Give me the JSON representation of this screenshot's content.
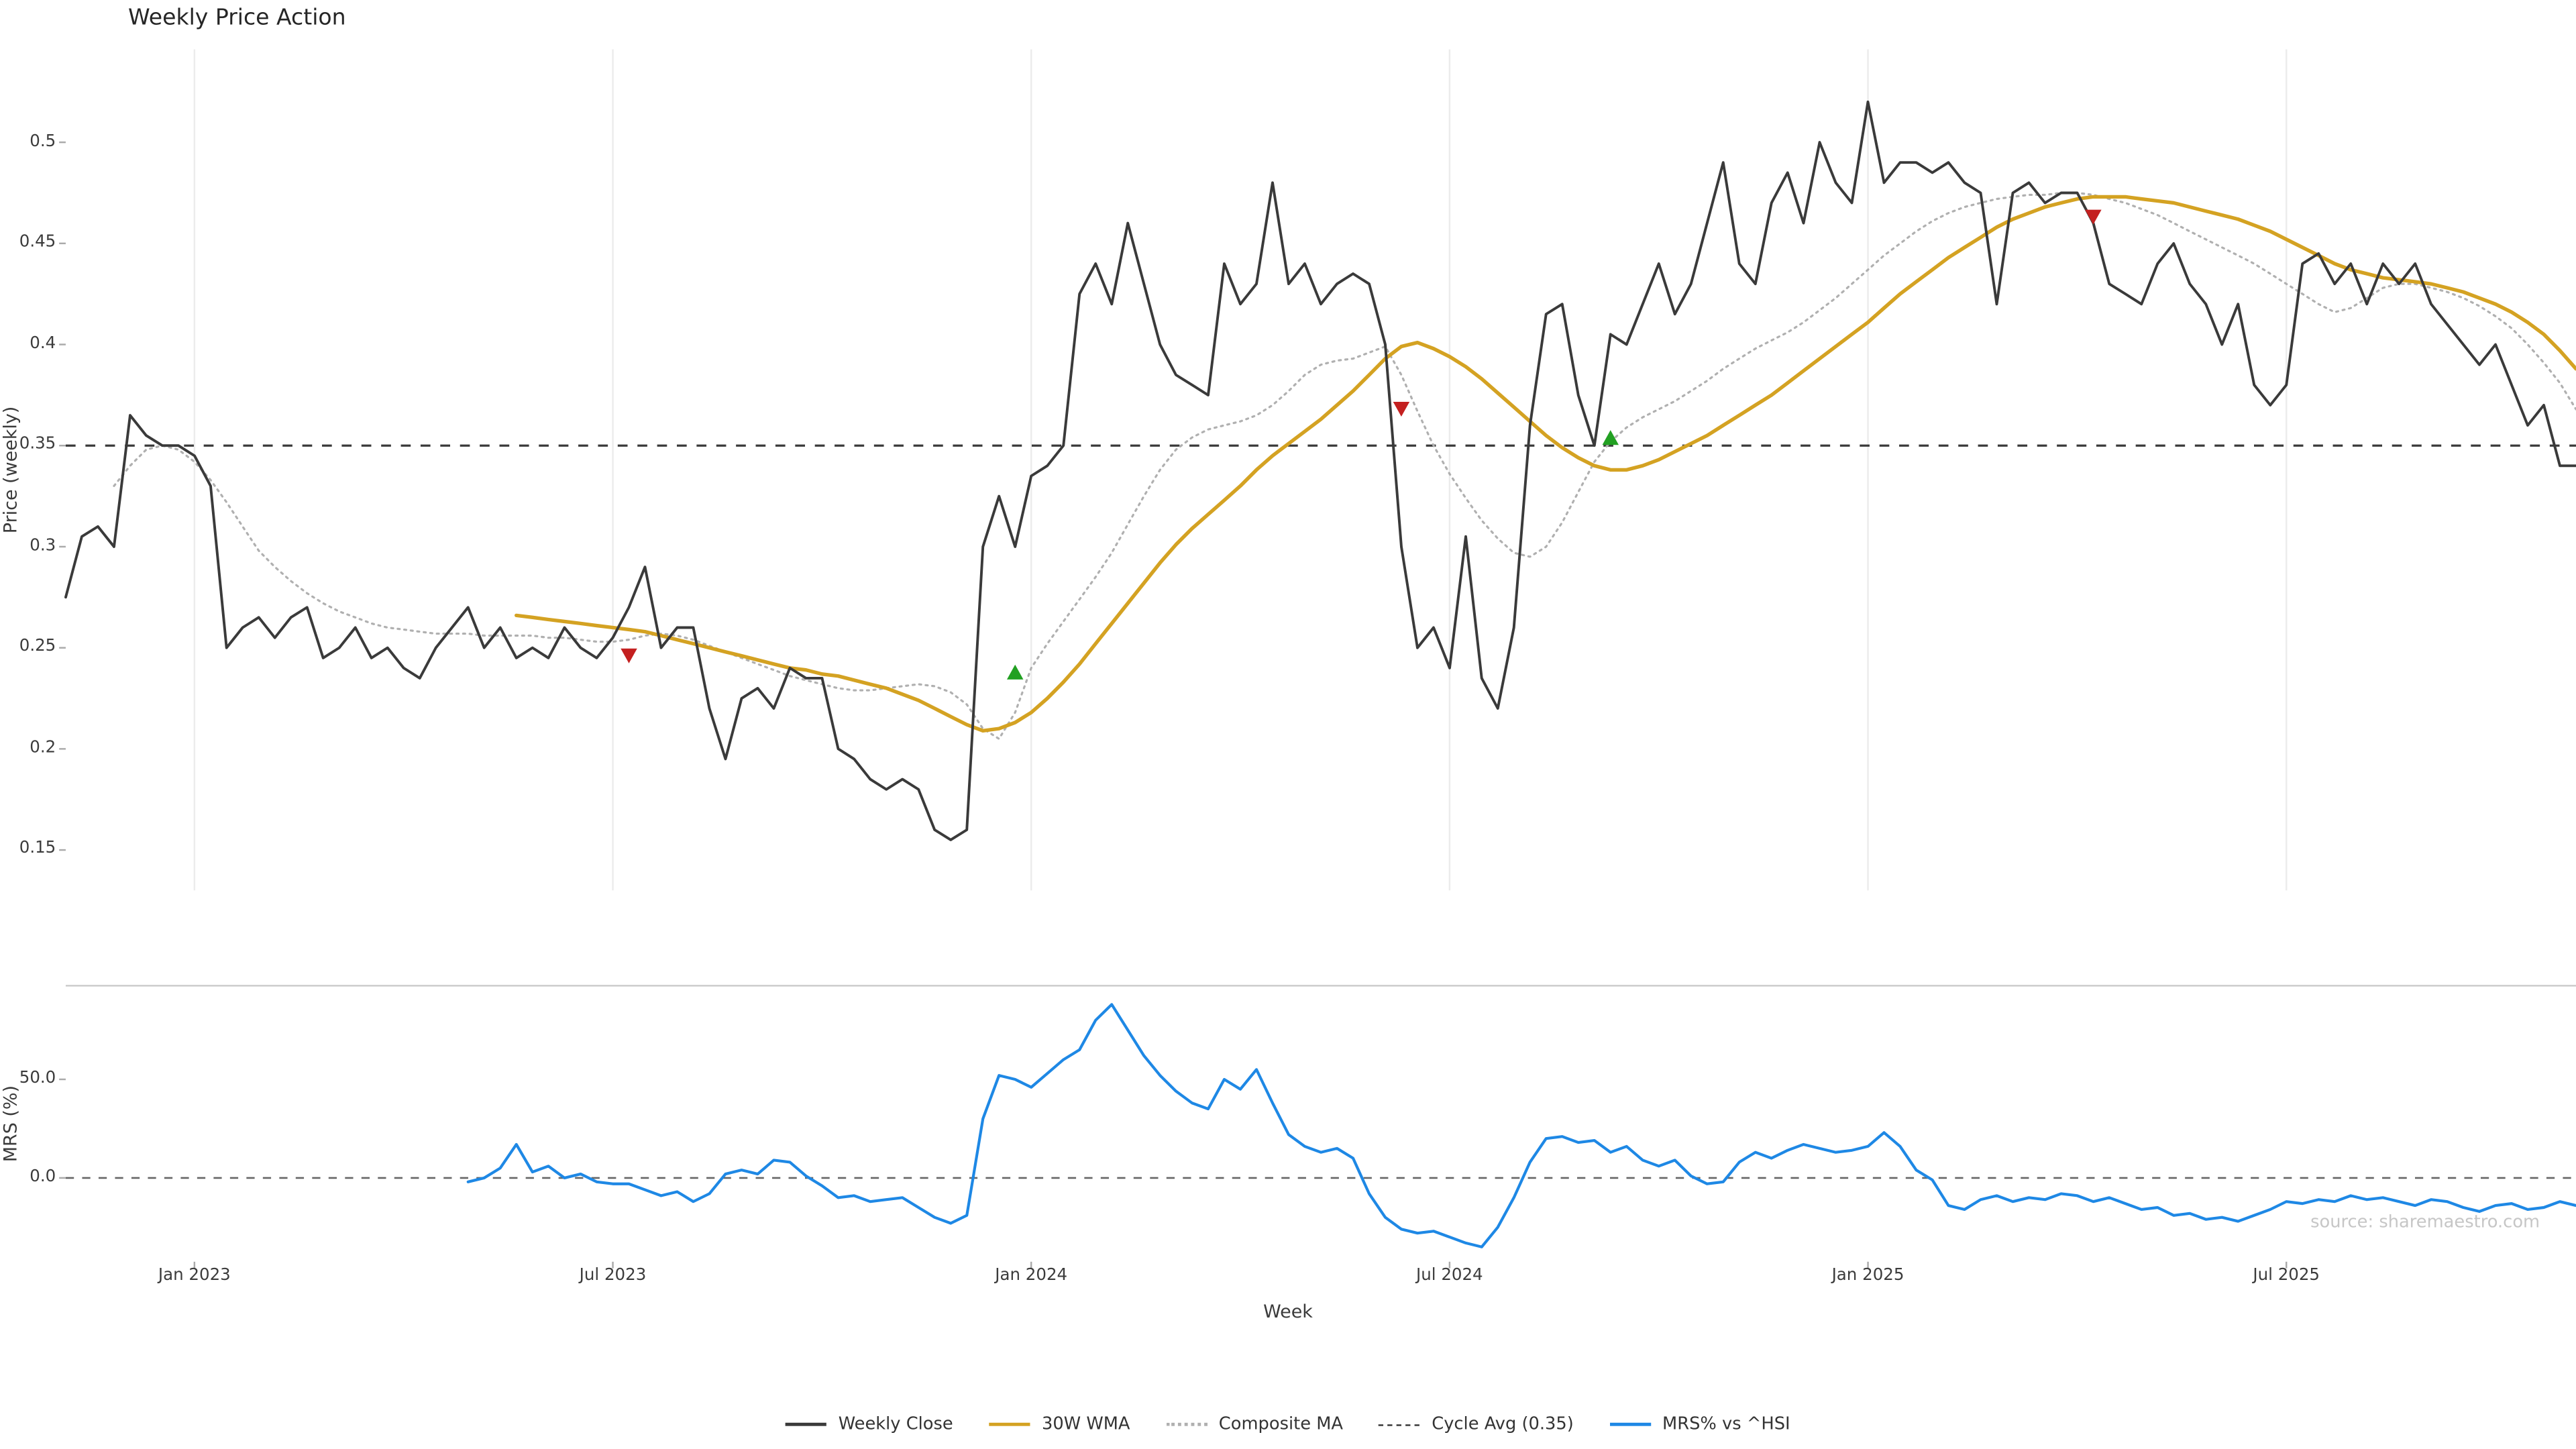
{
  "page": {
    "title": "Weekly Price Action",
    "xlabel": "Week",
    "watermark": "source: sharemaestro.com"
  },
  "colors": {
    "weekly_close": "#3a3a3a",
    "wma_30w": "#d4a222",
    "composite_ma": "#b0b0b0",
    "cycle_avg": "#3a3a3a",
    "mrs": "#1e88e5",
    "grid": "#ececec",
    "spine": "#cccccc",
    "tick": "#aaaaaa",
    "buy": "#22a022",
    "sell": "#c42020"
  },
  "axes": {
    "price": {
      "ylabel": "Price (weekly)",
      "ticks": [
        {
          "value": 0.5,
          "label": "0.5"
        },
        {
          "value": 0.45,
          "label": "0.45"
        },
        {
          "value": 0.4,
          "label": "0.4"
        },
        {
          "value": 0.35,
          "label": "0.35"
        },
        {
          "value": 0.3,
          "label": "0.3"
        },
        {
          "value": 0.25,
          "label": "0.25"
        },
        {
          "value": 0.2,
          "label": "0.2"
        },
        {
          "value": 0.15,
          "label": "0.15"
        }
      ]
    },
    "mrs": {
      "ylabel": "MRS (%)",
      "ticks": [
        {
          "value": 50,
          "label": "50.0"
        },
        {
          "value": 0,
          "label": "0.0"
        }
      ]
    },
    "x": {
      "label": "Week",
      "ticks": [
        {
          "week": 8,
          "label": "Jan 2023"
        },
        {
          "week": 34,
          "label": "Jul 2023"
        },
        {
          "week": 60,
          "label": "Jan 2024"
        },
        {
          "week": 86,
          "label": "Jul 2024"
        },
        {
          "week": 112,
          "label": "Jan 2025"
        },
        {
          "week": 138,
          "label": "Jul 2025"
        }
      ]
    }
  },
  "legend": {
    "items": [
      {
        "label": "Weekly Close",
        "color": "#3a3a3a",
        "line": "solid"
      },
      {
        "label": "30W WMA",
        "color": "#d4a222",
        "line": "solid"
      },
      {
        "label": "Composite MA",
        "color": "#b0b0b0",
        "line": "dotted"
      },
      {
        "label": "Cycle Avg (0.35)",
        "color": "#3a3a3a",
        "line": "dashed"
      },
      {
        "label": "MRS% vs ^HSI",
        "color": "#1e88e5",
        "line": "solid"
      }
    ]
  },
  "chart_data": [
    {
      "type": "line",
      "panel": "price",
      "title": "Weekly Price Action",
      "xlabel": "Week",
      "ylabel": "Price (weekly)",
      "ylim": [
        0.13,
        0.546
      ],
      "x_weeks_total": 156,
      "x_tick_weeks": [
        8,
        34,
        60,
        86,
        112,
        138
      ],
      "x_tick_labels": [
        "Jan 2023",
        "Jul 2023",
        "Jan 2024",
        "Jul 2024",
        "Jan 2025",
        "Jul 2025"
      ],
      "grid": "vertical-only",
      "reference_line": {
        "label": "Cycle Avg (0.35)",
        "value": 0.35,
        "style": "dashed",
        "color": "#3a3a3a"
      },
      "series": [
        {
          "name": "Weekly Close",
          "style": "solid",
          "color": "#3a3a3a",
          "width": 1.6,
          "start_week": 0,
          "values": [
            0.275,
            0.305,
            0.31,
            0.3,
            0.365,
            0.355,
            0.35,
            0.35,
            0.345,
            0.33,
            0.25,
            0.26,
            0.265,
            0.255,
            0.265,
            0.27,
            0.245,
            0.25,
            0.26,
            0.245,
            0.25,
            0.24,
            0.235,
            0.25,
            0.26,
            0.27,
            0.25,
            0.26,
            0.245,
            0.25,
            0.245,
            0.26,
            0.25,
            0.245,
            0.255,
            0.27,
            0.29,
            0.25,
            0.26,
            0.26,
            0.22,
            0.195,
            0.225,
            0.23,
            0.22,
            0.24,
            0.235,
            0.235,
            0.2,
            0.195,
            0.185,
            0.18,
            0.185,
            0.18,
            0.16,
            0.155,
            0.16,
            0.3,
            0.325,
            0.3,
            0.335,
            0.34,
            0.35,
            0.425,
            0.44,
            0.42,
            0.46,
            0.43,
            0.4,
            0.385,
            0.38,
            0.375,
            0.44,
            0.42,
            0.43,
            0.48,
            0.43,
            0.44,
            0.42,
            0.43,
            0.435,
            0.43,
            0.4,
            0.3,
            0.25,
            0.26,
            0.24,
            0.305,
            0.235,
            0.22,
            0.26,
            0.36,
            0.415,
            0.42,
            0.375,
            0.35,
            0.405,
            0.4,
            0.42,
            0.44,
            0.415,
            0.43,
            0.46,
            0.49,
            0.44,
            0.43,
            0.47,
            0.485,
            0.46,
            0.5,
            0.48,
            0.47,
            0.52,
            0.48,
            0.49,
            0.49,
            0.485,
            0.49,
            0.48,
            0.475,
            0.42,
            0.475,
            0.48,
            0.47,
            0.475,
            0.475,
            0.46,
            0.43,
            0.425,
            0.42,
            0.44,
            0.45,
            0.43,
            0.42,
            0.4,
            0.42,
            0.38,
            0.37,
            0.38,
            0.44,
            0.445,
            0.43,
            0.44,
            0.42,
            0.44,
            0.43,
            0.44,
            0.42,
            0.41,
            0.4,
            0.39,
            0.4,
            0.38,
            0.36,
            0.37,
            0.34,
            0.34
          ]
        },
        {
          "name": "30W WMA",
          "style": "solid",
          "color": "#d4a222",
          "width": 2.2,
          "start_week": 28,
          "values": [
            0.266,
            0.265,
            0.264,
            0.263,
            0.262,
            0.261,
            0.26,
            0.259,
            0.258,
            0.256,
            0.254,
            0.252,
            0.25,
            0.248,
            0.246,
            0.244,
            0.242,
            0.24,
            0.239,
            0.237,
            0.236,
            0.234,
            0.232,
            0.23,
            0.227,
            0.224,
            0.22,
            0.216,
            0.212,
            0.209,
            0.21,
            0.213,
            0.218,
            0.225,
            0.233,
            0.242,
            0.252,
            0.262,
            0.272,
            0.282,
            0.292,
            0.301,
            0.309,
            0.316,
            0.323,
            0.33,
            0.338,
            0.345,
            0.351,
            0.357,
            0.363,
            0.37,
            0.377,
            0.385,
            0.393,
            0.399,
            0.401,
            0.398,
            0.394,
            0.389,
            0.383,
            0.376,
            0.369,
            0.362,
            0.355,
            0.349,
            0.344,
            0.34,
            0.338,
            0.338,
            0.34,
            0.343,
            0.347,
            0.351,
            0.355,
            0.36,
            0.365,
            0.37,
            0.375,
            0.381,
            0.387,
            0.393,
            0.399,
            0.405,
            0.411,
            0.418,
            0.425,
            0.431,
            0.437,
            0.443,
            0.448,
            0.453,
            0.458,
            0.462,
            0.465,
            0.468,
            0.47,
            0.472,
            0.473,
            0.473,
            0.473,
            0.472,
            0.471,
            0.47,
            0.468,
            0.466,
            0.464,
            0.462,
            0.459,
            0.456,
            0.452,
            0.448,
            0.444,
            0.44,
            0.437,
            0.435,
            0.433,
            0.432,
            0.431,
            0.43,
            0.428,
            0.426,
            0.423,
            0.42,
            0.416,
            0.411,
            0.405,
            0.397,
            0.388
          ]
        },
        {
          "name": "Composite MA",
          "style": "dotted",
          "color": "#b0b0b0",
          "width": 1.3,
          "start_week": 3,
          "values": [
            0.33,
            0.34,
            0.348,
            0.35,
            0.348,
            0.342,
            0.333,
            0.322,
            0.31,
            0.298,
            0.29,
            0.283,
            0.277,
            0.272,
            0.268,
            0.265,
            0.262,
            0.26,
            0.259,
            0.258,
            0.257,
            0.257,
            0.257,
            0.256,
            0.256,
            0.256,
            0.256,
            0.255,
            0.255,
            0.254,
            0.253,
            0.253,
            0.254,
            0.256,
            0.257,
            0.256,
            0.254,
            0.251,
            0.248,
            0.245,
            0.242,
            0.239,
            0.236,
            0.234,
            0.232,
            0.23,
            0.229,
            0.229,
            0.23,
            0.231,
            0.232,
            0.231,
            0.228,
            0.222,
            0.21,
            0.205,
            0.218,
            0.24,
            0.252,
            0.263,
            0.274,
            0.285,
            0.297,
            0.311,
            0.325,
            0.338,
            0.348,
            0.354,
            0.358,
            0.36,
            0.362,
            0.365,
            0.37,
            0.377,
            0.385,
            0.39,
            0.392,
            0.393,
            0.396,
            0.399,
            0.385,
            0.367,
            0.35,
            0.336,
            0.324,
            0.313,
            0.304,
            0.297,
            0.295,
            0.3,
            0.312,
            0.327,
            0.342,
            0.352,
            0.359,
            0.364,
            0.368,
            0.372,
            0.377,
            0.382,
            0.388,
            0.393,
            0.398,
            0.402,
            0.406,
            0.411,
            0.417,
            0.423,
            0.43,
            0.437,
            0.444,
            0.45,
            0.456,
            0.461,
            0.465,
            0.468,
            0.47,
            0.472,
            0.473,
            0.474,
            0.474,
            0.475,
            0.475,
            0.474,
            0.472,
            0.47,
            0.467,
            0.464,
            0.46,
            0.456,
            0.452,
            0.448,
            0.444,
            0.44,
            0.435,
            0.43,
            0.425,
            0.42,
            0.416,
            0.418,
            0.423,
            0.428,
            0.43,
            0.43,
            0.428,
            0.426,
            0.423,
            0.419,
            0.414,
            0.408,
            0.4,
            0.391,
            0.381,
            0.368
          ]
        }
      ],
      "markers": {
        "sell": {
          "shape": "triangle-down",
          "color": "#c42020",
          "points": [
            {
              "week": 35,
              "value": 0.246
            },
            {
              "week": 83,
              "value": 0.368
            },
            {
              "week": 126,
              "value": 0.463
            }
          ]
        },
        "buy": {
          "shape": "triangle-up",
          "color": "#22a022",
          "points": [
            {
              "week": 59,
              "value": 0.238
            },
            {
              "week": 96,
              "value": 0.354
            }
          ]
        }
      }
    },
    {
      "type": "line",
      "panel": "mrs",
      "ylabel": "MRS (%)",
      "ylim": [
        -42.5,
        97.5
      ],
      "y_tick_values": [
        0,
        50
      ],
      "y_tick_labels": [
        "0.0",
        "50.0"
      ],
      "reference_line": {
        "value": 0,
        "style": "dashed",
        "color": "#666666"
      },
      "series": [
        {
          "name": "MRS% vs ^HSI",
          "style": "solid",
          "color": "#1e88e5",
          "width": 1.7,
          "start_week": 25,
          "values": [
            -2,
            0,
            5,
            17,
            3,
            6,
            0,
            2,
            -2,
            -3,
            -3,
            -6,
            -9,
            -7,
            -12,
            -8,
            2,
            4,
            2,
            9,
            8,
            1,
            -4,
            -10,
            -9,
            -12,
            -11,
            -10,
            -15,
            -20,
            -23,
            -19,
            30,
            52,
            50,
            46,
            53,
            60,
            65,
            80,
            88,
            75,
            62,
            52,
            44,
            38,
            35,
            50,
            45,
            55,
            38,
            22,
            16,
            13,
            15,
            10,
            -8,
            -20,
            -26,
            -28,
            -27,
            -30,
            -33,
            -35,
            -25,
            -10,
            8,
            20,
            21,
            18,
            19,
            13,
            16,
            9,
            6,
            9,
            1,
            -3,
            -2,
            8,
            13,
            10,
            14,
            17,
            15,
            13,
            14,
            16,
            23,
            16,
            4,
            -1,
            -14,
            -16,
            -11,
            -9,
            -12,
            -10,
            -11,
            -8,
            -9,
            -12,
            -10,
            -13,
            -16,
            -15,
            -19,
            -18,
            -21,
            -20,
            -22,
            -19,
            -16,
            -12,
            -13,
            -11,
            -12,
            -9,
            -11,
            -10,
            -12,
            -14,
            -11,
            -12,
            -15,
            -17,
            -14,
            -13,
            -16,
            -15,
            -12,
            -14
          ]
        }
      ]
    }
  ]
}
